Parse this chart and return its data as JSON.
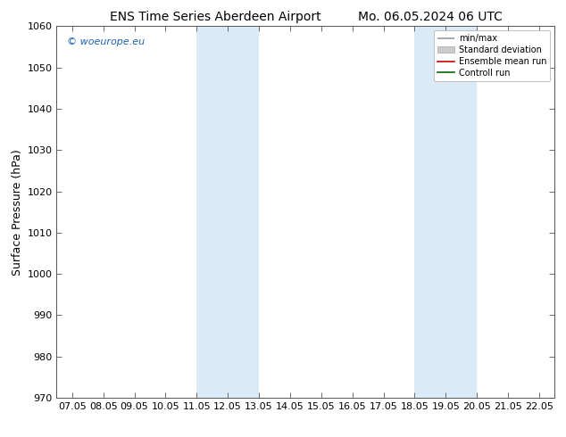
{
  "title_left": "ENS Time Series Aberdeen Airport",
  "title_right": "Mo. 06.05.2024 06 UTC",
  "ylabel": "Surface Pressure (hPa)",
  "ylim": [
    970,
    1060
  ],
  "yticks": [
    970,
    980,
    990,
    1000,
    1010,
    1020,
    1030,
    1040,
    1050,
    1060
  ],
  "xtick_labels": [
    "07.05",
    "08.05",
    "09.05",
    "10.05",
    "11.05",
    "12.05",
    "13.05",
    "14.05",
    "15.05",
    "16.05",
    "17.05",
    "18.05",
    "19.05",
    "20.05",
    "21.05",
    "22.05"
  ],
  "shaded_bands": [
    [
      "11.05",
      "13.05"
    ],
    [
      "18.05",
      "20.05"
    ]
  ],
  "shade_color": "#daeaf7",
  "background_color": "#ffffff",
  "watermark": "© woeurope.eu",
  "watermark_color": "#1a5fb4",
  "legend_items": [
    {
      "label": "min/max",
      "color": "#999999",
      "lw": 1.2
    },
    {
      "label": "Standard deviation",
      "color": "#cccccc",
      "lw": 8
    },
    {
      "label": "Ensemble mean run",
      "color": "#cc0000",
      "lw": 1.2
    },
    {
      "label": "Controll run",
      "color": "#006600",
      "lw": 1.2
    }
  ],
  "title_fontsize": 10,
  "tick_fontsize": 8,
  "ylabel_fontsize": 9
}
